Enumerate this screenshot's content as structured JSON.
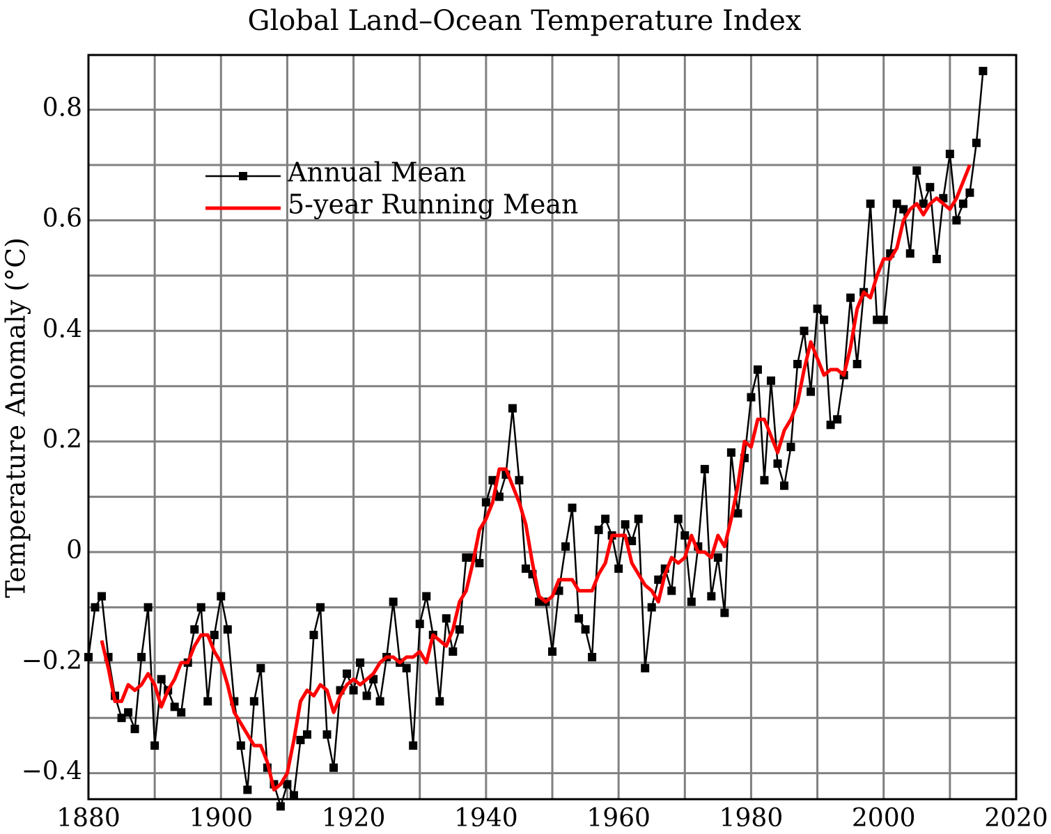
{
  "chart_data": {
    "type": "line",
    "title": "Global Land–Ocean Temperature Index",
    "y_label": "Temperature Anomaly (°C)",
    "xlim": [
      1880,
      2020
    ],
    "xticks": [
      1880,
      1900,
      1920,
      1940,
      1960,
      1980,
      2000,
      2020
    ],
    "x_minor_grid": [
      1890,
      1910,
      1930,
      1950,
      1970,
      1990,
      2010
    ],
    "ylim": [
      -0.447,
      0.899
    ],
    "yticks": [
      {
        "value": -0.4,
        "label": "−0.4"
      },
      {
        "value": -0.2,
        "label": "−0.2"
      },
      0,
      0.2,
      0.4,
      0.6,
      0.8
    ],
    "y_minor_grid": [
      -0.3,
      -0.1,
      0.1,
      0.3,
      0.5,
      0.7
    ],
    "grid": true,
    "legend": "upper left",
    "series": [
      {
        "name": "Annual Mean",
        "color": "#000000",
        "marker": "square",
        "x": [
          1880,
          1881,
          1882,
          1883,
          1884,
          1885,
          1886,
          1887,
          1888,
          1889,
          1890,
          1891,
          1892,
          1893,
          1894,
          1895,
          1896,
          1897,
          1898,
          1899,
          1900,
          1901,
          1902,
          1903,
          1904,
          1905,
          1906,
          1907,
          1908,
          1909,
          1910,
          1911,
          1912,
          1913,
          1914,
          1915,
          1916,
          1917,
          1918,
          1919,
          1920,
          1921,
          1922,
          1923,
          1924,
          1925,
          1926,
          1927,
          1928,
          1929,
          1930,
          1931,
          1932,
          1933,
          1934,
          1935,
          1936,
          1937,
          1938,
          1939,
          1940,
          1941,
          1942,
          1943,
          1944,
          1945,
          1946,
          1947,
          1948,
          1949,
          1950,
          1951,
          1952,
          1953,
          1954,
          1955,
          1956,
          1957,
          1958,
          1959,
          1960,
          1961,
          1962,
          1963,
          1964,
          1965,
          1966,
          1967,
          1968,
          1969,
          1970,
          1971,
          1972,
          1973,
          1974,
          1975,
          1976,
          1977,
          1978,
          1979,
          1980,
          1981,
          1982,
          1983,
          1984,
          1985,
          1986,
          1987,
          1988,
          1989,
          1990,
          1991,
          1992,
          1993,
          1994,
          1995,
          1996,
          1997,
          1998,
          1999,
          2000,
          2001,
          2002,
          2003,
          2004,
          2005,
          2006,
          2007,
          2008,
          2009,
          2010,
          2011,
          2012,
          2013,
          2014,
          2015
        ],
        "values": [
          -0.19,
          -0.1,
          -0.08,
          -0.19,
          -0.26,
          -0.3,
          -0.29,
          -0.32,
          -0.19,
          -0.1,
          -0.35,
          -0.23,
          -0.25,
          -0.28,
          -0.29,
          -0.2,
          -0.14,
          -0.1,
          -0.27,
          -0.15,
          -0.08,
          -0.14,
          -0.27,
          -0.35,
          -0.43,
          -0.27,
          -0.21,
          -0.39,
          -0.42,
          -0.46,
          -0.42,
          -0.44,
          -0.34,
          -0.33,
          -0.15,
          -0.1,
          -0.33,
          -0.39,
          -0.25,
          -0.22,
          -0.25,
          -0.2,
          -0.26,
          -0.23,
          -0.27,
          -0.19,
          -0.09,
          -0.2,
          -0.21,
          -0.35,
          -0.13,
          -0.08,
          -0.15,
          -0.27,
          -0.12,
          -0.18,
          -0.14,
          -0.01,
          -0.01,
          -0.02,
          0.09,
          0.13,
          0.1,
          0.14,
          0.26,
          0.13,
          -0.03,
          -0.04,
          -0.09,
          -0.09,
          -0.18,
          -0.07,
          0.01,
          0.08,
          -0.12,
          -0.14,
          -0.19,
          0.04,
          0.06,
          0.03,
          -0.03,
          0.05,
          0.02,
          0.06,
          -0.21,
          -0.1,
          -0.05,
          -0.03,
          -0.07,
          0.06,
          0.03,
          -0.09,
          0.01,
          0.15,
          -0.08,
          -0.01,
          -0.11,
          0.18,
          0.07,
          0.17,
          0.28,
          0.33,
          0.13,
          0.31,
          0.16,
          0.12,
          0.19,
          0.34,
          0.4,
          0.29,
          0.44,
          0.42,
          0.23,
          0.24,
          0.32,
          0.46,
          0.34,
          0.47,
          0.63,
          0.42,
          0.42,
          0.54,
          0.63,
          0.62,
          0.54,
          0.69,
          0.63,
          0.66,
          0.53,
          0.64,
          0.72,
          0.6,
          0.63,
          0.65,
          0.74,
          0.87
        ]
      },
      {
        "name": "5-year Running Mean",
        "color": "#ff0000",
        "x": [
          1882,
          1883,
          1884,
          1885,
          1886,
          1887,
          1888,
          1889,
          1890,
          1891,
          1892,
          1893,
          1894,
          1895,
          1896,
          1897,
          1898,
          1899,
          1900,
          1901,
          1902,
          1903,
          1904,
          1905,
          1906,
          1907,
          1908,
          1909,
          1910,
          1911,
          1912,
          1913,
          1914,
          1915,
          1916,
          1917,
          1918,
          1919,
          1920,
          1921,
          1922,
          1923,
          1924,
          1925,
          1926,
          1927,
          1928,
          1929,
          1930,
          1931,
          1932,
          1933,
          1934,
          1935,
          1936,
          1937,
          1938,
          1939,
          1940,
          1941,
          1942,
          1943,
          1944,
          1945,
          1946,
          1947,
          1948,
          1949,
          1950,
          1951,
          1952,
          1953,
          1954,
          1955,
          1956,
          1957,
          1958,
          1959,
          1960,
          1961,
          1962,
          1963,
          1964,
          1965,
          1966,
          1967,
          1968,
          1969,
          1970,
          1971,
          1972,
          1973,
          1974,
          1975,
          1976,
          1977,
          1978,
          1979,
          1980,
          1981,
          1982,
          1983,
          1984,
          1985,
          1986,
          1987,
          1988,
          1989,
          1990,
          1991,
          1992,
          1993,
          1994,
          1995,
          1996,
          1997,
          1998,
          1999,
          2000,
          2001,
          2002,
          2003,
          2004,
          2005,
          2006,
          2007,
          2008,
          2009,
          2010,
          2011,
          2012,
          2013
        ],
        "values": [
          -0.16,
          -0.21,
          -0.27,
          -0.27,
          -0.24,
          -0.25,
          -0.24,
          -0.22,
          -0.24,
          -0.28,
          -0.25,
          -0.23,
          -0.2,
          -0.2,
          -0.17,
          -0.15,
          -0.15,
          -0.18,
          -0.2,
          -0.24,
          -0.29,
          -0.31,
          -0.33,
          -0.35,
          -0.35,
          -0.38,
          -0.43,
          -0.42,
          -0.4,
          -0.34,
          -0.27,
          -0.25,
          -0.26,
          -0.24,
          -0.25,
          -0.29,
          -0.26,
          -0.24,
          -0.23,
          -0.24,
          -0.23,
          -0.22,
          -0.2,
          -0.19,
          -0.19,
          -0.2,
          -0.19,
          -0.19,
          -0.18,
          -0.2,
          -0.15,
          -0.16,
          -0.17,
          -0.14,
          -0.09,
          -0.07,
          -0.02,
          0.04,
          0.06,
          0.09,
          0.15,
          0.15,
          0.12,
          0.09,
          0.05,
          -0.02,
          -0.08,
          -0.09,
          -0.08,
          -0.05,
          -0.05,
          -0.05,
          -0.07,
          -0.07,
          -0.07,
          -0.04,
          -0.02,
          0.03,
          0.03,
          0.03,
          -0.02,
          -0.04,
          -0.06,
          -0.07,
          -0.09,
          -0.04,
          -0.01,
          -0.02,
          -0.01,
          0.03,
          0.0,
          0.0,
          -0.01,
          0.03,
          0.01,
          0.06,
          0.12,
          0.2,
          0.19,
          0.24,
          0.24,
          0.21,
          0.18,
          0.22,
          0.24,
          0.27,
          0.33,
          0.38,
          0.35,
          0.32,
          0.33,
          0.33,
          0.32,
          0.37,
          0.44,
          0.47,
          0.46,
          0.5,
          0.53,
          0.53,
          0.55,
          0.6,
          0.62,
          0.63,
          0.61,
          0.63,
          0.64,
          0.63,
          0.62,
          0.64,
          0.67,
          0.7
        ]
      }
    ]
  }
}
